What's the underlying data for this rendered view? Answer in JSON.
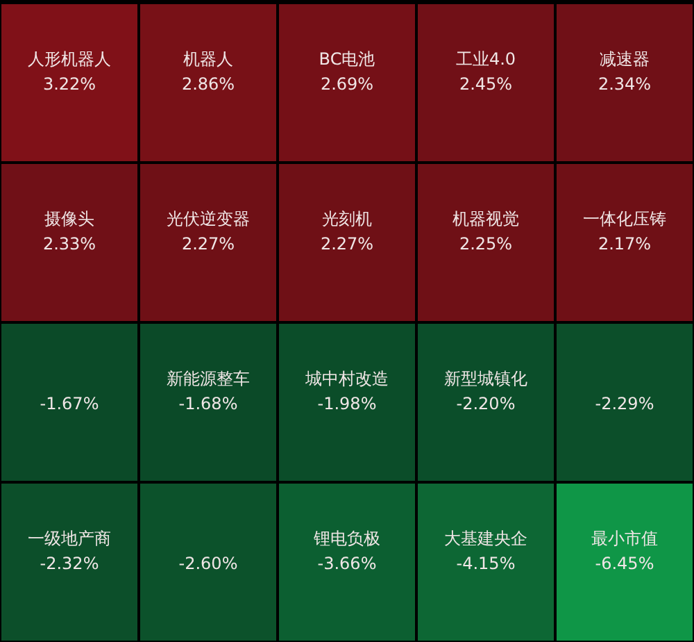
{
  "chart_data": {
    "type": "other",
    "categories": [
      "人形机器人",
      "机器人",
      "BC电池",
      "工业4.0",
      "减速器",
      "摄像头",
      "光伏逆变器",
      "光刻机",
      "机器视觉",
      "一体化压铸",
      null,
      "新能源整车",
      "城中村改造",
      "新型城镇化",
      null,
      "一级地产商",
      null,
      "锂电负极",
      "大基建央企",
      "最小市值"
    ],
    "values": [
      3.22,
      2.86,
      2.69,
      2.45,
      2.34,
      2.33,
      2.27,
      2.27,
      2.25,
      2.17,
      -1.67,
      -1.68,
      -1.98,
      -2.2,
      -2.29,
      -2.32,
      -2.6,
      -3.66,
      -4.15,
      -6.45
    ],
    "value_labels": [
      "3.22%",
      "2.86%",
      "2.69%",
      "2.45%",
      "2.34%",
      "2.33%",
      "2.27%",
      "2.27%",
      "2.25%",
      "2.17%",
      "-1.67%",
      "-1.68%",
      "-1.98%",
      "-2.20%",
      "-2.29%",
      "-2.32%",
      "-2.60%",
      "-3.66%",
      "-4.15%",
      "-6.45%"
    ]
  }
}
